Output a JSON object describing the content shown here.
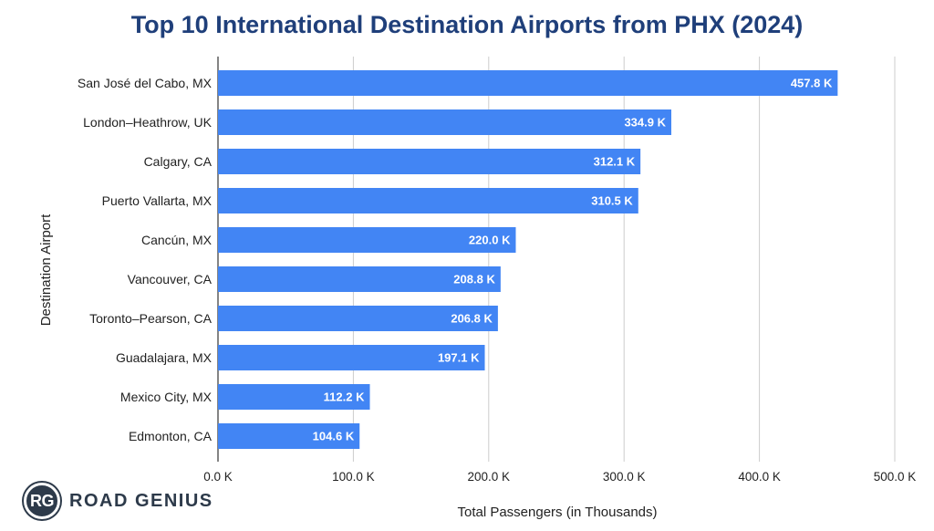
{
  "chart_data": {
    "type": "bar",
    "orientation": "horizontal",
    "title": "Top 10 International Destination Airports from PHX (2024)",
    "xlabel": "Total Passengers (in Thousands)",
    "ylabel": "Destination Airport",
    "categories": [
      "San José del Cabo, MX",
      "London–Heathrow, UK",
      "Calgary, CA",
      "Puerto Vallarta, MX",
      "Cancún, MX",
      "Vancouver, CA",
      "Toronto–Pearson, CA",
      "Guadalajara, MX",
      "Mexico City, MX",
      "Edmonton, CA"
    ],
    "values": [
      457.8,
      334.9,
      312.1,
      310.5,
      220.0,
      208.8,
      206.8,
      197.1,
      112.2,
      104.6
    ],
    "data_labels": [
      "457.8 K",
      "334.9 K",
      "312.1 K",
      "310.5 K",
      "220.0 K",
      "208.8 K",
      "206.8 K",
      "197.1 K",
      "112.2 K",
      "104.6 K"
    ],
    "xlim": [
      0,
      500
    ],
    "x_ticks": [
      0,
      100,
      200,
      300,
      400,
      500
    ],
    "x_tick_labels": [
      "0.0 K",
      "100.0 K",
      "200.0 K",
      "300.0 K",
      "400.0 K",
      "500.0 K"
    ],
    "grid": true,
    "legend": "none",
    "colors": {
      "bar": "#4285f4",
      "title": "#1f3f7a",
      "grid": "#cccccc",
      "axis": "#333333"
    }
  },
  "branding": {
    "badge": "RG",
    "name": "ROAD GENIUS"
  }
}
